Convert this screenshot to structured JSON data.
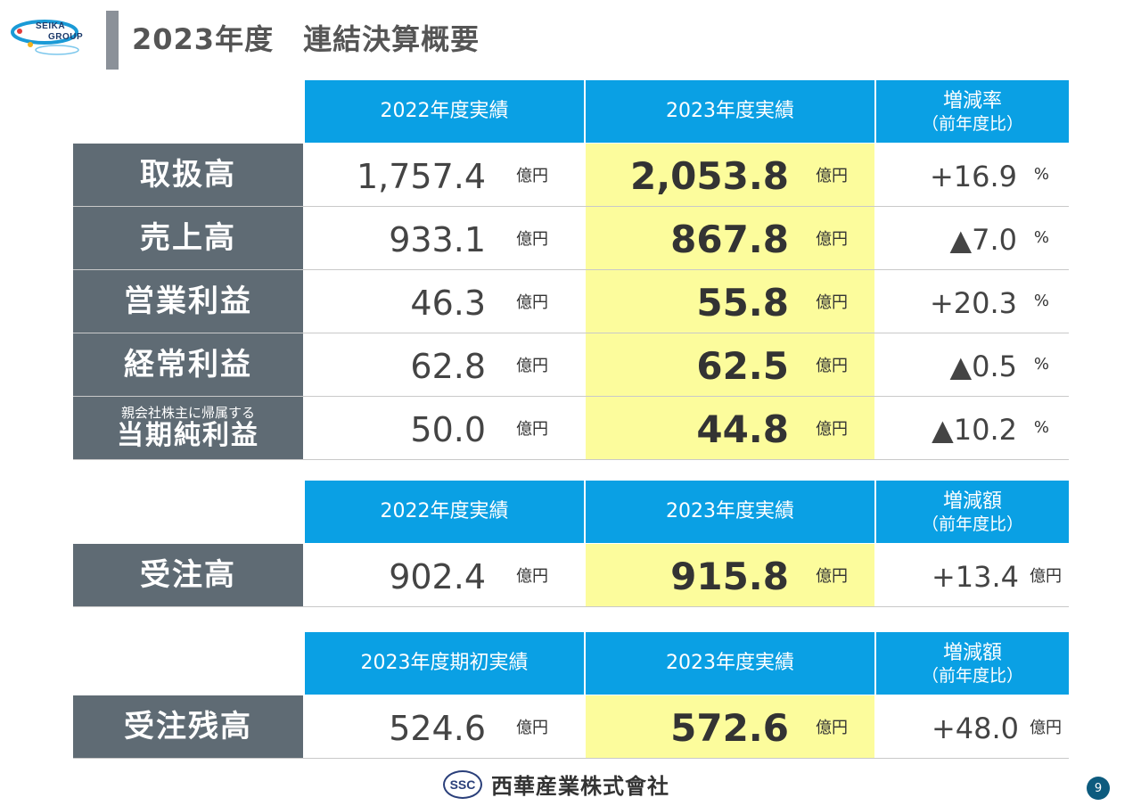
{
  "logo": {
    "line1": "SEIKA",
    "line2": "GROUP"
  },
  "page_title": "2023年度　連結決算概要",
  "table1": {
    "headers": [
      "2022年度実績",
      "2023年度実績",
      "増減率",
      "（前年度比）"
    ],
    "rows": [
      {
        "label": "取扱高",
        "sublabel": "",
        "prev": "1,757.4",
        "curr": "2,053.8",
        "change": "+16.9",
        "unit": "億円",
        "change_unit": "%"
      },
      {
        "label": "売上高",
        "sublabel": "",
        "prev": "933.1",
        "curr": "867.8",
        "change": "▲7.0",
        "unit": "億円",
        "change_unit": "%"
      },
      {
        "label": "営業利益",
        "sublabel": "",
        "prev": "46.3",
        "curr": "55.8",
        "change": "+20.3",
        "unit": "億円",
        "change_unit": "%"
      },
      {
        "label": "経常利益",
        "sublabel": "",
        "prev": "62.8",
        "curr": "62.5",
        "change": "▲0.5",
        "unit": "億円",
        "change_unit": "%"
      },
      {
        "label": "当期純利益",
        "sublabel": "親会社株主に帰属する",
        "prev": "50.0",
        "curr": "44.8",
        "change": "▲10.2",
        "unit": "億円",
        "change_unit": "%"
      }
    ]
  },
  "table2": {
    "headers": [
      "2022年度実績",
      "2023年度実績",
      "増減額",
      "（前年度比）"
    ],
    "row": {
      "label": "受注高",
      "prev": "902.4",
      "curr": "915.8",
      "change": "+13.4",
      "unit": "億円",
      "change_unit": "億円"
    }
  },
  "table3": {
    "headers": [
      "2023年度期初実績",
      "2023年度実績",
      "増減額",
      "（前年度比）"
    ],
    "row": {
      "label": "受注残高",
      "prev": "524.6",
      "curr": "572.6",
      "change": "+48.0",
      "unit": "億円",
      "change_unit": "億円"
    }
  },
  "footer": {
    "ssc": "SSC",
    "company": "西華産業株式會社",
    "page": "9"
  },
  "colors": {
    "header_blue": "#0aa0e4",
    "label_gray": "#5f6b74",
    "highlight_yellow": "#fcfc9c"
  }
}
